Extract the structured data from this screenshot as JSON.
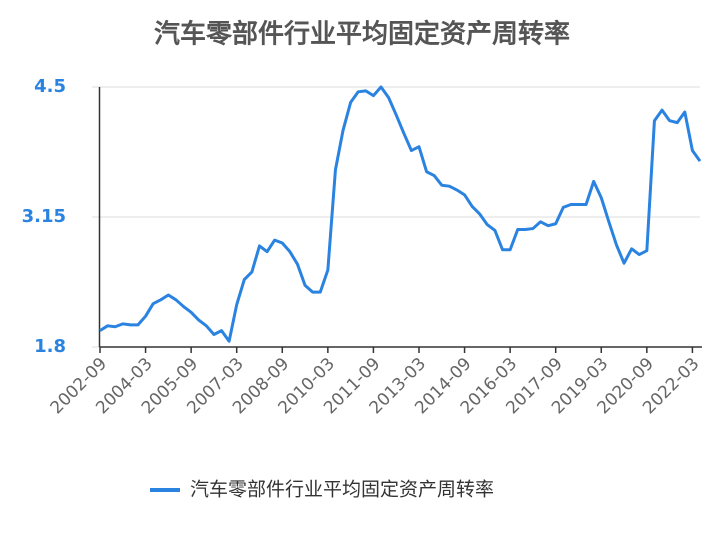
{
  "chart_data": {
    "type": "line",
    "title": "汽车零部件行业平均固定资产周转率",
    "categories": [
      "2002-09",
      null,
      null,
      null,
      null,
      null,
      "2004-03",
      null,
      null,
      null,
      null,
      null,
      "2005-09",
      null,
      null,
      null,
      null,
      null,
      "2007-03",
      null,
      null,
      null,
      null,
      null,
      "2008-09",
      null,
      null,
      null,
      null,
      null,
      "2010-03",
      null,
      null,
      null,
      null,
      null,
      "2011-09",
      null,
      null,
      null,
      null,
      null,
      "2013-03",
      null,
      null,
      null,
      null,
      null,
      "2014-09",
      null,
      null,
      null,
      null,
      null,
      "2016-03",
      null,
      null,
      null,
      null,
      null,
      "2017-09",
      null,
      null,
      null,
      null,
      null,
      "2019-03",
      null,
      null,
      null,
      null,
      null,
      "2020-09",
      null,
      null,
      null,
      null,
      null,
      "2022-03",
      null
    ],
    "series": [
      {
        "name": "汽车零部件行业平均固定资产周转率",
        "color": "#2a83e0",
        "values": [
          1.97,
          2.02,
          2.01,
          2.04,
          2.03,
          2.03,
          2.12,
          2.25,
          2.29,
          2.34,
          2.29,
          2.22,
          2.16,
          2.08,
          2.02,
          1.93,
          1.97,
          1.86,
          2.24,
          2.5,
          2.58,
          2.85,
          2.79,
          2.91,
          2.88,
          2.79,
          2.66,
          2.44,
          2.37,
          2.37,
          2.6,
          3.64,
          4.05,
          4.34,
          4.45,
          4.46,
          4.41,
          4.5,
          4.39,
          4.21,
          4.02,
          3.84,
          3.88,
          3.62,
          3.58,
          3.48,
          3.47,
          3.43,
          3.38,
          3.26,
          3.18,
          3.07,
          3.01,
          2.81,
          2.81,
          3.02,
          3.02,
          3.03,
          3.1,
          3.06,
          3.08,
          3.25,
          3.28,
          3.28,
          3.28,
          3.52,
          3.35,
          3.1,
          2.86,
          2.67,
          2.82,
          2.76,
          2.8,
          4.15,
          4.26,
          4.15,
          4.13,
          4.24,
          3.84,
          3.73
        ]
      }
    ],
    "ylim": [
      1.8,
      4.5
    ],
    "yticks": [
      1.8,
      3.15,
      4.5
    ],
    "grid": true,
    "legend": "bottom"
  }
}
